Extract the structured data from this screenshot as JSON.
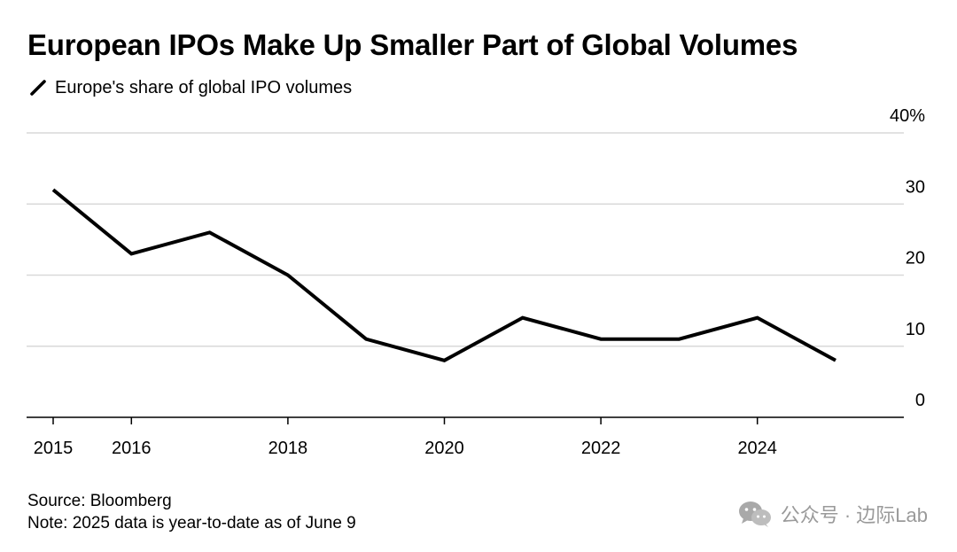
{
  "header": {
    "title": "European IPOs Make Up Smaller Part of Global Volumes",
    "legend_label": "Europe's share of global IPO volumes"
  },
  "footer": {
    "source": "Source: Bloomberg",
    "note": "Note: 2025 data is year-to-date as of June 9"
  },
  "watermark": {
    "text": "公众号 · 边际Lab",
    "icon": "wechat-icon"
  },
  "colors": {
    "line": "#000000",
    "grid": "#d9d9d9",
    "axis": "#000000",
    "watermark": "#9a9a9a"
  },
  "chart_data": {
    "type": "line",
    "title": "European IPOs Make Up Smaller Part of Global Volumes",
    "xlabel": "",
    "ylabel": "",
    "x": [
      2015,
      2016,
      2017,
      2018,
      2019,
      2020,
      2021,
      2022,
      2023,
      2024,
      2025
    ],
    "series": [
      {
        "name": "Europe's share of global IPO volumes",
        "values": [
          32,
          23,
          26,
          20,
          11,
          8,
          14,
          11,
          11,
          14,
          8
        ]
      }
    ],
    "xlim": [
      2015,
      2025
    ],
    "ylim": [
      0,
      40
    ],
    "x_ticks": [
      2015,
      2016,
      2018,
      2020,
      2022,
      2024
    ],
    "x_tick_labels": [
      "2015",
      "2016",
      "2018",
      "2020",
      "2022",
      "2024"
    ],
    "y_ticks": [
      0,
      10,
      20,
      30,
      40
    ],
    "y_tick_labels": [
      "0",
      "10",
      "20",
      "30",
      "40%"
    ],
    "grid": true,
    "y_axis_side": "right",
    "legend": "top-left"
  }
}
